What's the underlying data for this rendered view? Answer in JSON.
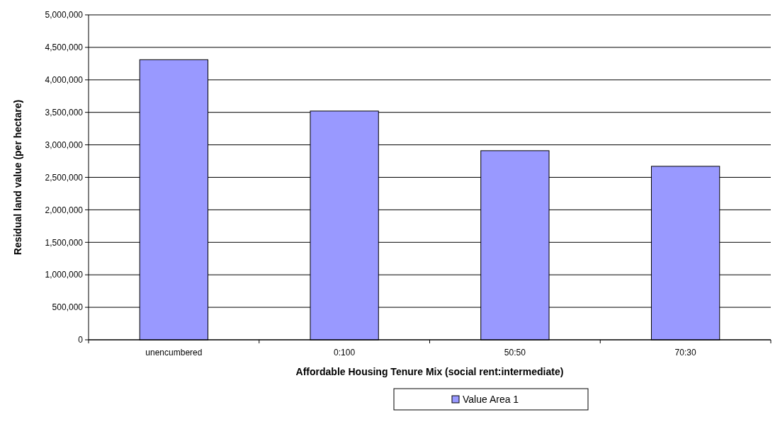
{
  "chart_data": {
    "type": "bar",
    "xlabel": "Affordable Housing Tenure Mix (social rent:intermediate)",
    "ylabel": "Residual land value (per hectare)",
    "categories": [
      "unencumbered",
      "0:100",
      "50:50",
      "70:30"
    ],
    "series": [
      {
        "name": "Value Area 1",
        "color": "#9999ff",
        "values": [
          4310000,
          3520000,
          2910000,
          2670000
        ]
      }
    ],
    "ylim": [
      0,
      5000000
    ],
    "yticks": [
      {
        "value": 0,
        "label": "0"
      },
      {
        "value": 500000,
        "label": "500,000"
      },
      {
        "value": 1000000,
        "label": "1,000,000"
      },
      {
        "value": 1500000,
        "label": "1,500,000"
      },
      {
        "value": 2000000,
        "label": "2,000,000"
      },
      {
        "value": 2500000,
        "label": "2,500,000"
      },
      {
        "value": 3000000,
        "label": "3,000,000"
      },
      {
        "value": 3500000,
        "label": "3,500,000"
      },
      {
        "value": 4000000,
        "label": "4,000,000"
      },
      {
        "value": 4500000,
        "label": "4,500,000"
      },
      {
        "value": 5000000,
        "label": "5,000,000"
      }
    ],
    "grid": "y",
    "legend": "bottom"
  }
}
